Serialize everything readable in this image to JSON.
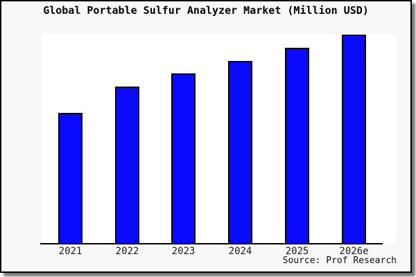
{
  "figure": {
    "title": "Global Portable Sulfur Analyzer Market (Million USD)",
    "source": "Source: Prof Research"
  },
  "colors": {
    "bar_fill": "#0a0aff",
    "bar_outline": "#000000",
    "figure_background": "#f8f8f8",
    "plot_background": "#ffffff",
    "axis_line": "#000000",
    "title_text": "#000000",
    "tick_text": "#1a1a1a",
    "drop_shadow": "#7a7a7a"
  },
  "chart_data": {
    "type": "bar",
    "title": "Global Portable Sulfur Analyzer Market (Million USD)",
    "categories": [
      "2021",
      "2022",
      "2023",
      "2024",
      "2025",
      "2026e"
    ],
    "values": [
      62.5,
      75,
      81.3,
      87.5,
      93.8,
      100
    ],
    "values_unit": "percent of tallest bar (2026e); no numeric y-axis shown in figure",
    "xlabel": "",
    "ylabel": "",
    "grid": false,
    "legend": "none",
    "bar_color": "#0a0aff",
    "source": "Source: Prof Research"
  }
}
